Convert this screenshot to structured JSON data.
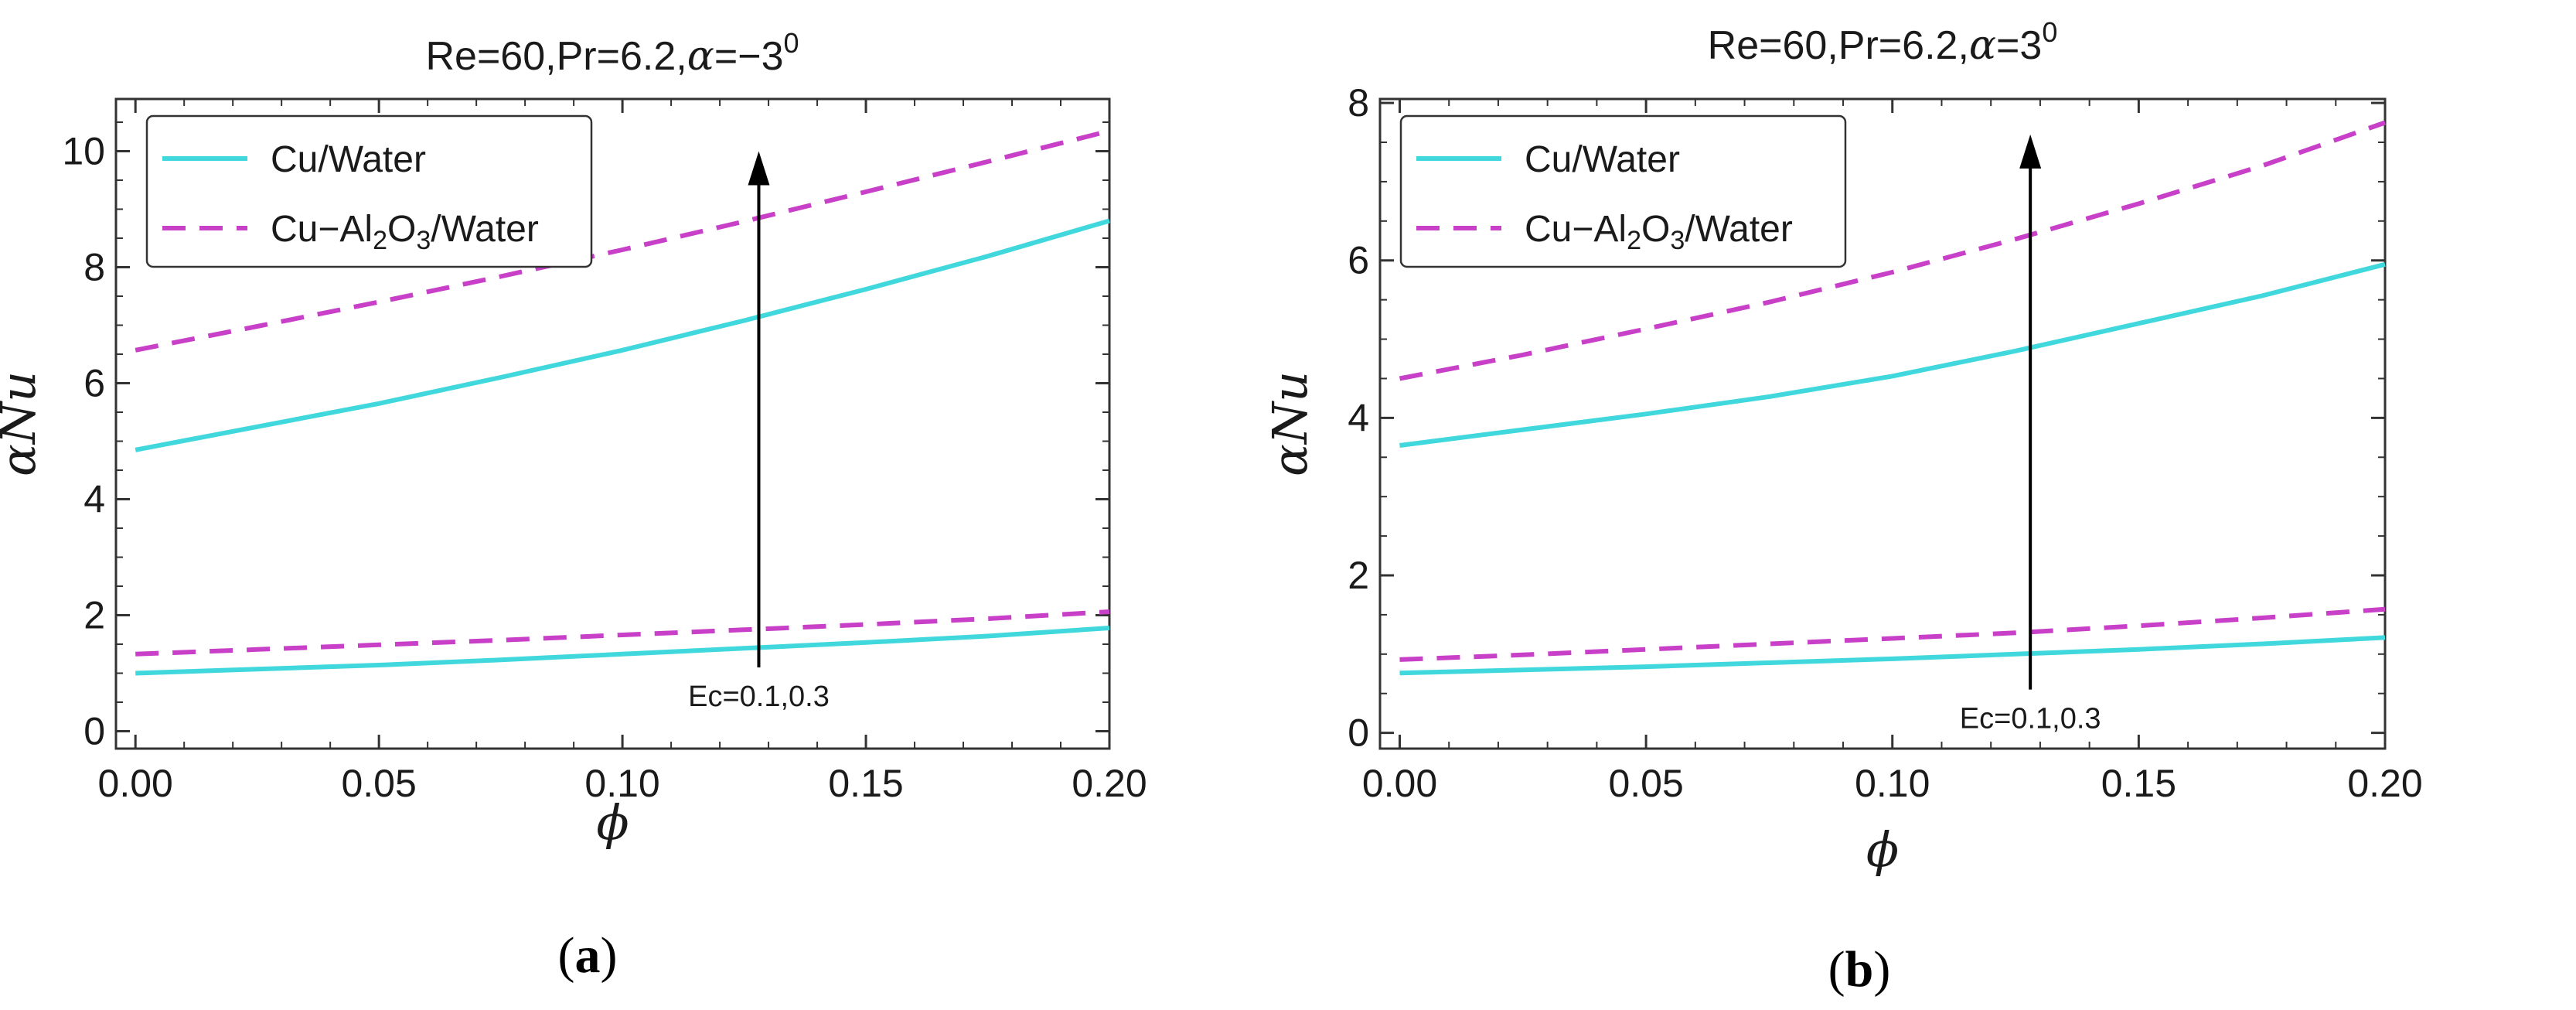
{
  "chart_data": [
    {
      "type": "line",
      "panel_label_open": "(",
      "panel_label": "a",
      "panel_label_close": ")",
      "title": {
        "prefix": "Re=60,Pr=6.2,",
        "greek": "α",
        "eq": "=",
        "value": "−3",
        "sup": "0"
      },
      "xlabel": "ϕ",
      "ylabel": "αNu",
      "xlim": [
        -0.004,
        0.2
      ],
      "ylim": [
        -0.3,
        10.9
      ],
      "xticks": [
        0.0,
        0.05,
        0.1,
        0.15,
        0.2
      ],
      "xtick_labels": [
        "0.00",
        "0.05",
        "0.10",
        "0.15",
        "0.20"
      ],
      "yticks": [
        0,
        2,
        4,
        6,
        8,
        10
      ],
      "ytick_labels": [
        "0",
        "2",
        "4",
        "6",
        "8",
        "10"
      ],
      "legend": [
        {
          "name": "Cu/Water",
          "text": "Cu/Water",
          "color": "#40d8dc",
          "dash": "solid"
        },
        {
          "name": "Cu-Al2O3/Water",
          "text_a": "Cu−Al",
          "sub1": "2",
          "text_b": "O",
          "sub2": "3",
          "text_c": "/Water",
          "color": "#c840c8",
          "dash": "dashed"
        }
      ],
      "series": [
        {
          "name": "Cu/Water, Ec=0.1",
          "color": "#40d8dc",
          "dash": "solid",
          "x": [
            0.0,
            0.025,
            0.05,
            0.075,
            0.1,
            0.125,
            0.15,
            0.175,
            0.2
          ],
          "y": [
            1.0,
            1.07,
            1.14,
            1.23,
            1.33,
            1.43,
            1.53,
            1.64,
            1.78
          ]
        },
        {
          "name": "Cu-Al2O3/Water, Ec=0.1",
          "color": "#c840c8",
          "dash": "dashed",
          "x": [
            0.0,
            0.025,
            0.05,
            0.075,
            0.1,
            0.125,
            0.15,
            0.175,
            0.2
          ],
          "y": [
            1.33,
            1.41,
            1.49,
            1.57,
            1.66,
            1.75,
            1.84,
            1.94,
            2.06
          ]
        },
        {
          "name": "Cu/Water, Ec=0.3",
          "color": "#40d8dc",
          "dash": "solid",
          "x": [
            0.0,
            0.025,
            0.05,
            0.075,
            0.1,
            0.125,
            0.15,
            0.175,
            0.2
          ],
          "y": [
            4.85,
            5.25,
            5.65,
            6.1,
            6.57,
            7.08,
            7.62,
            8.19,
            8.8
          ]
        },
        {
          "name": "Cu-Al2O3/Water, Ec=0.3",
          "color": "#c840c8",
          "dash": "dashed",
          "x": [
            0.0,
            0.025,
            0.05,
            0.075,
            0.1,
            0.125,
            0.15,
            0.175,
            0.2
          ],
          "y": [
            6.57,
            6.98,
            7.4,
            7.84,
            8.3,
            8.79,
            9.3,
            9.82,
            10.35
          ]
        }
      ],
      "annotation": {
        "text": "Ec=0.1,0.3",
        "x": 0.128,
        "y_from": 1.1,
        "y_to": 10.0
      }
    },
    {
      "type": "line",
      "panel_label_open": "(",
      "panel_label": "b",
      "panel_label_close": ")",
      "title": {
        "prefix": "Re=60,Pr=6.2,",
        "greek": "α",
        "eq": "=",
        "value": "3",
        "sup": "0"
      },
      "xlabel": "ϕ",
      "ylabel": "αNu",
      "xlim": [
        -0.004,
        0.2
      ],
      "ylim": [
        -0.2,
        8.05
      ],
      "xticks": [
        0.0,
        0.05,
        0.1,
        0.15,
        0.2
      ],
      "xtick_labels": [
        "0.00",
        "0.05",
        "0.10",
        "0.15",
        "0.20"
      ],
      "yticks": [
        0,
        2,
        4,
        6,
        8
      ],
      "ytick_labels": [
        "0",
        "2",
        "4",
        "6",
        "8"
      ],
      "legend": [
        {
          "name": "Cu/Water",
          "text": "Cu/Water",
          "color": "#40d8dc",
          "dash": "solid"
        },
        {
          "name": "Cu-Al2O3/Water",
          "text_a": "Cu−Al",
          "sub1": "2",
          "text_b": "O",
          "sub2": "3",
          "text_c": "/Water",
          "color": "#c840c8",
          "dash": "dashed"
        }
      ],
      "series": [
        {
          "name": "Cu/Water, Ec=0.1",
          "color": "#40d8dc",
          "dash": "solid",
          "x": [
            0.0,
            0.025,
            0.05,
            0.075,
            0.1,
            0.125,
            0.15,
            0.175,
            0.2
          ],
          "y": [
            0.76,
            0.8,
            0.84,
            0.89,
            0.94,
            1.0,
            1.06,
            1.13,
            1.21
          ]
        },
        {
          "name": "Cu-Al2O3/Water, Ec=0.1",
          "color": "#c840c8",
          "dash": "dashed",
          "x": [
            0.0,
            0.025,
            0.05,
            0.075,
            0.1,
            0.125,
            0.15,
            0.175,
            0.2
          ],
          "y": [
            0.93,
            0.99,
            1.06,
            1.13,
            1.2,
            1.27,
            1.36,
            1.46,
            1.57
          ]
        },
        {
          "name": "Cu/Water, Ec=0.3",
          "color": "#40d8dc",
          "dash": "solid",
          "x": [
            0.0,
            0.025,
            0.05,
            0.075,
            0.1,
            0.125,
            0.15,
            0.175,
            0.2
          ],
          "y": [
            3.65,
            3.85,
            4.05,
            4.27,
            4.53,
            4.85,
            5.2,
            5.55,
            5.95
          ]
        },
        {
          "name": "Cu-Al2O3/Water, Ec=0.3",
          "color": "#c840c8",
          "dash": "dashed",
          "x": [
            0.0,
            0.025,
            0.05,
            0.075,
            0.1,
            0.125,
            0.15,
            0.175,
            0.2
          ],
          "y": [
            4.5,
            4.8,
            5.13,
            5.47,
            5.85,
            6.27,
            6.72,
            7.2,
            7.75
          ]
        }
      ],
      "annotation": {
        "text": "Ec=0.1,0.3",
        "x": 0.128,
        "y_from": 0.55,
        "y_to": 7.6
      }
    }
  ]
}
